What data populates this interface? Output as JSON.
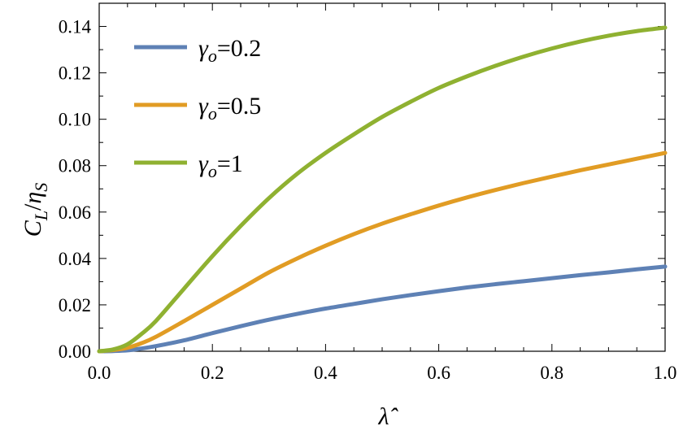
{
  "chart_data": {
    "type": "line",
    "title": "",
    "xlabel": "λ̂",
    "ylabel": "C_L/η_S",
    "xlim": [
      0.0,
      1.0
    ],
    "ylim": [
      0.0,
      0.15
    ],
    "xticks": [
      "0.0",
      "0.2",
      "0.4",
      "0.6",
      "0.8",
      "1.0"
    ],
    "xtick_values": [
      0.0,
      0.2,
      0.4,
      0.6,
      0.8,
      1.0
    ],
    "yticks": [
      "0.00",
      "0.02",
      "0.04",
      "0.06",
      "0.08",
      "0.10",
      "0.12",
      "0.14"
    ],
    "ytick_values": [
      0.0,
      0.02,
      0.04,
      0.06,
      0.08,
      0.1,
      0.12,
      0.14
    ],
    "grid": false,
    "legend_position": "top-left",
    "x": [
      0.0,
      0.025,
      0.05,
      0.075,
      0.1,
      0.15,
      0.2,
      0.25,
      0.3,
      0.35,
      0.4,
      0.45,
      0.5,
      0.55,
      0.6,
      0.65,
      0.7,
      0.75,
      0.8,
      0.85,
      0.9,
      0.95,
      1.0
    ],
    "series": [
      {
        "name": "γo=0.2",
        "legend_symbol": "γ",
        "legend_sub": "o",
        "legend_value": "=0.2",
        "color": "#5e81b5",
        "values": [
          0.0,
          0.0001,
          0.0004,
          0.0012,
          0.0022,
          0.0047,
          0.0078,
          0.0108,
          0.0136,
          0.0161,
          0.0184,
          0.0204,
          0.0224,
          0.0242,
          0.0259,
          0.0275,
          0.0289,
          0.0302,
          0.0315,
          0.0328,
          0.034,
          0.0353,
          0.0365
        ]
      },
      {
        "name": "γo=0.5",
        "legend_symbol": "γ",
        "legend_sub": "o",
        "legend_value": "=0.5",
        "color": "#e19c24",
        "values": [
          0.0,
          0.0005,
          0.0015,
          0.0035,
          0.0062,
          0.013,
          0.02,
          0.027,
          0.034,
          0.04,
          0.0455,
          0.0505,
          0.055,
          0.059,
          0.0628,
          0.0663,
          0.0695,
          0.0725,
          0.0753,
          0.078,
          0.0805,
          0.083,
          0.0855
        ]
      },
      {
        "name": "γo=1",
        "legend_symbol": "γ",
        "legend_sub": "o",
        "legend_value": "=1",
        "color": "#8fb131",
        "values": [
          0.0,
          0.0008,
          0.003,
          0.0075,
          0.013,
          0.027,
          0.041,
          0.054,
          0.066,
          0.0765,
          0.0855,
          0.0935,
          0.101,
          0.1075,
          0.1135,
          0.1185,
          0.123,
          0.127,
          0.1305,
          0.1335,
          0.136,
          0.138,
          0.1395
        ]
      }
    ]
  }
}
